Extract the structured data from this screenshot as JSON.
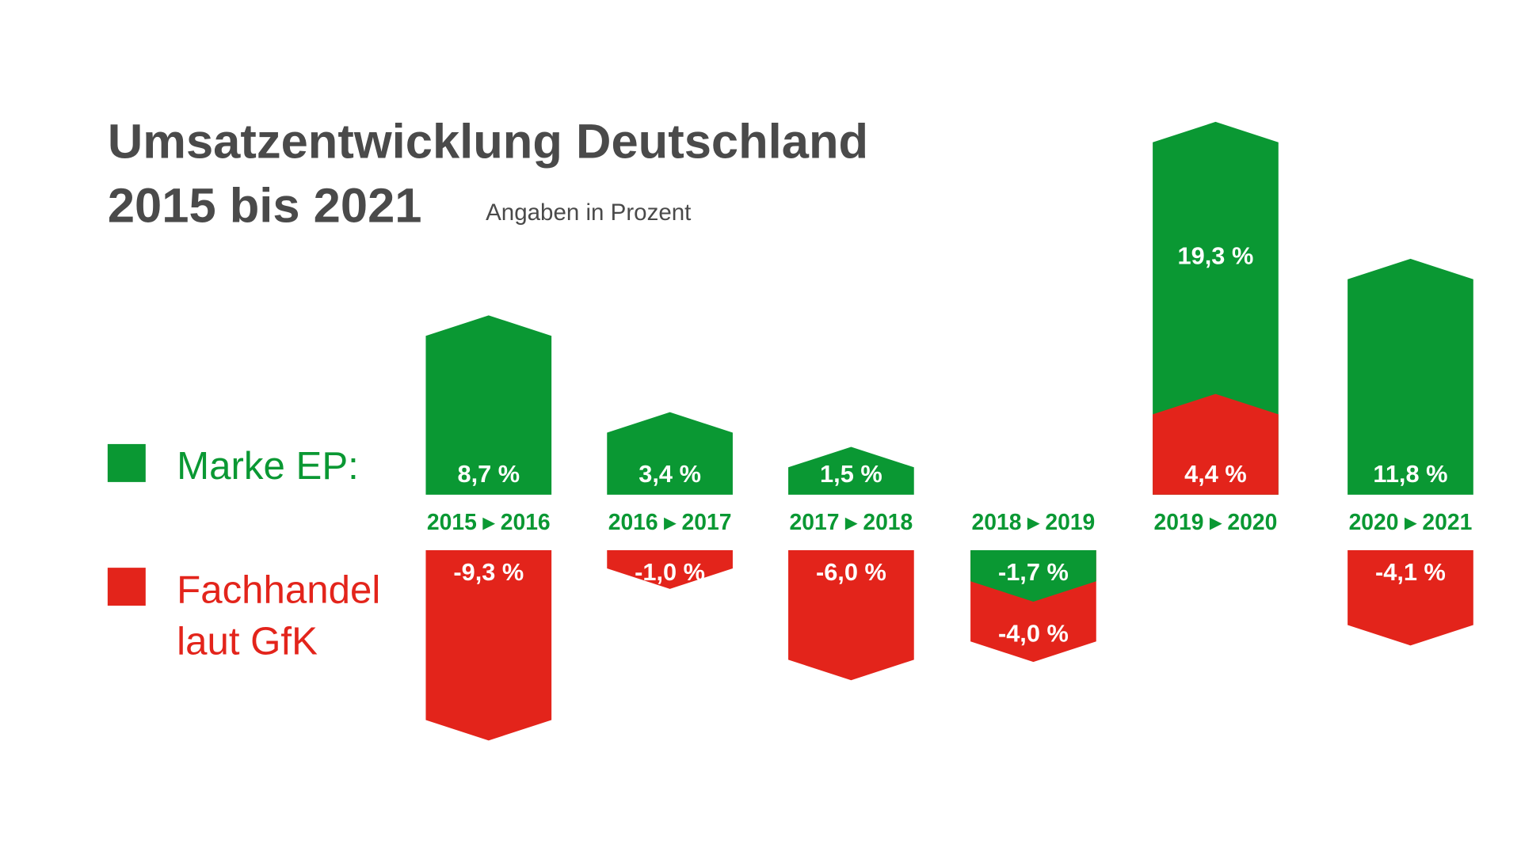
{
  "chart_data": {
    "type": "bar",
    "title": "Umsatzentwicklung Deutschland",
    "title_line2": "2015 bis 2021",
    "subtitle": "Angaben in Prozent",
    "categories": [
      "2015 ▸ 2016",
      "2016 ▸ 2017",
      "2017 ▸ 2018",
      "2018 ▸ 2019",
      "2019 ▸ 2020",
      "2020 ▸ 2021"
    ],
    "series": [
      {
        "name": "Marke EP:",
        "color": "#0a9833",
        "values": [
          8.7,
          3.4,
          1.5,
          -1.7,
          19.3,
          11.8
        ],
        "labels": [
          "8,7 %",
          "3,4 %",
          "1,5 %",
          "-1,7 %",
          "19,3 %",
          "11,8 %"
        ]
      },
      {
        "name": "Fachhandel laut GfK",
        "name_lines": [
          "Fachhandel",
          "laut GfK"
        ],
        "color": "#e3241b",
        "values": [
          -9.3,
          -1.0,
          -6.0,
          -4.0,
          4.4,
          -4.1
        ],
        "labels": [
          "-9,3 %",
          "-1,0 %",
          "-6,0 %",
          "-4,0 %",
          "4,4 %",
          "-4,1 %"
        ]
      }
    ],
    "legend_placement": "left",
    "grid": false
  }
}
